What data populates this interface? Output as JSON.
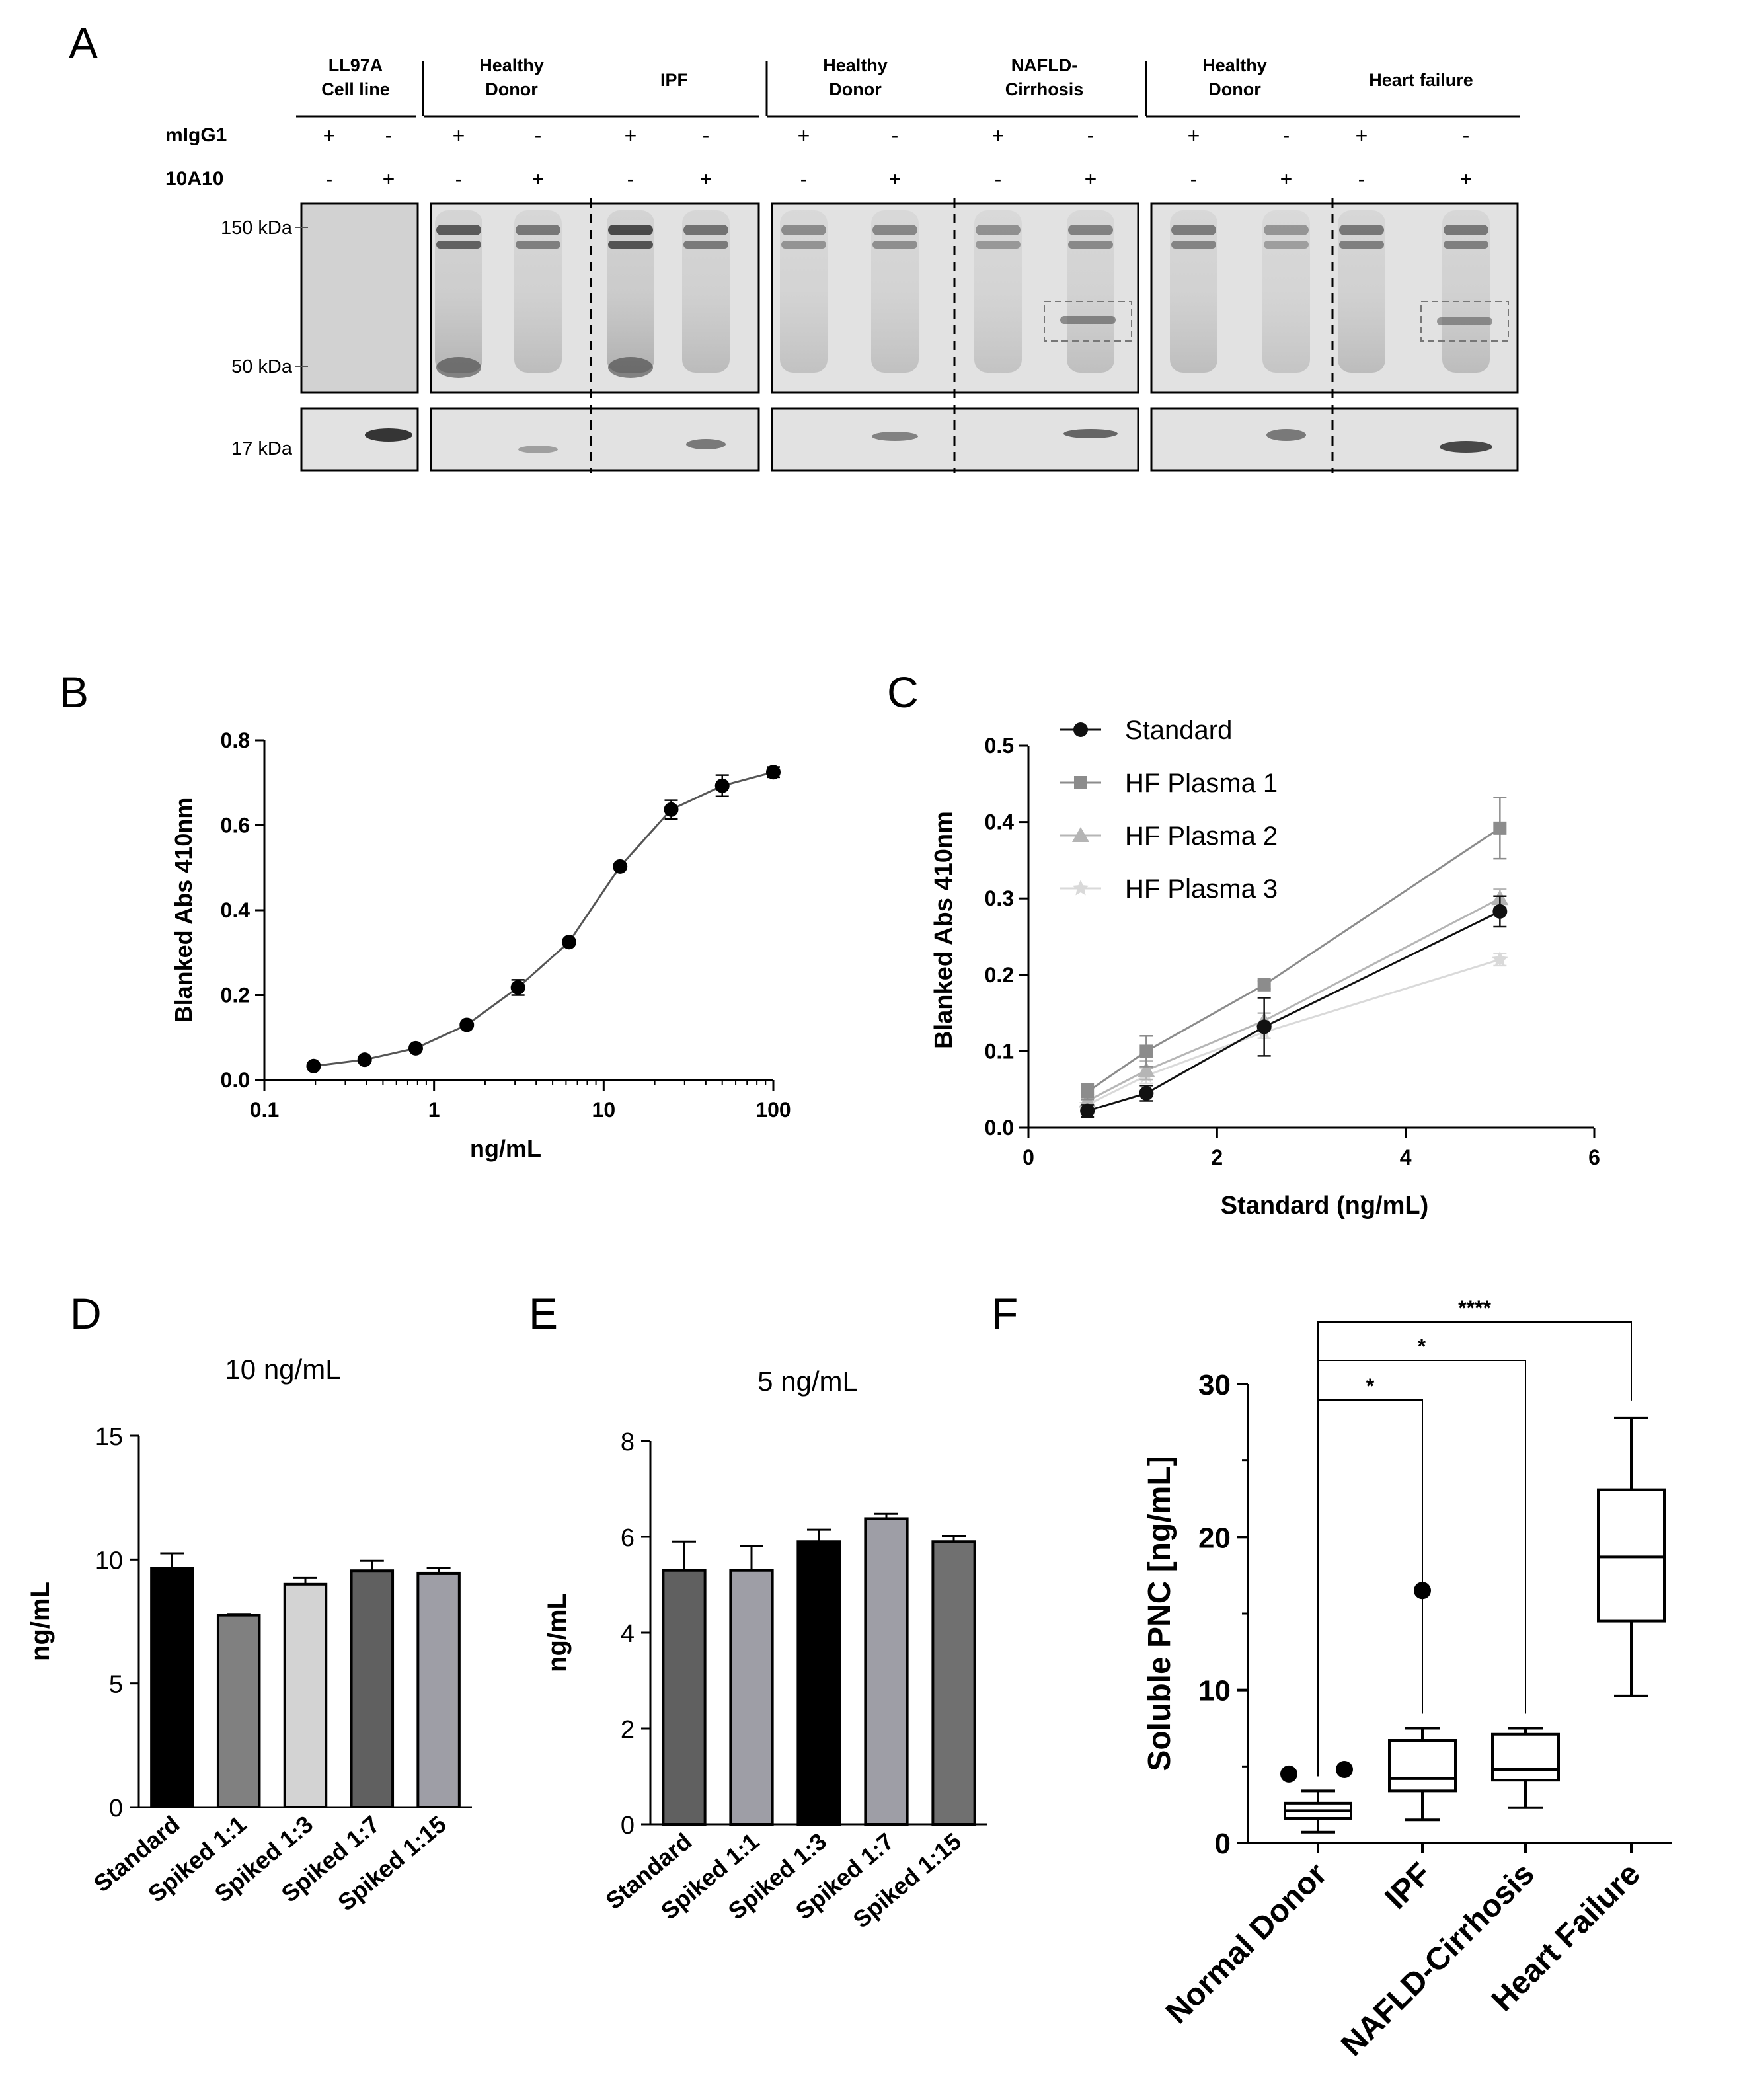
{
  "panel_letters": [
    "A",
    "B",
    "C",
    "D",
    "E",
    "F"
  ],
  "panelA": {
    "groups": [
      {
        "header": [
          "LL97A",
          "Cell line"
        ],
        "lanes": [
          {
            "migg1": "+",
            "a10": "-"
          },
          {
            "migg1": "-",
            "a10": "+"
          }
        ]
      },
      {
        "header": [
          "Healthy",
          "Donor"
        ],
        "lanes": [
          {
            "migg1": "+",
            "a10": "-"
          },
          {
            "migg1": "-",
            "a10": "+"
          }
        ]
      },
      {
        "header": [
          "IPF"
        ],
        "lanes": [
          {
            "migg1": "+",
            "a10": "-"
          },
          {
            "migg1": "-",
            "a10": "+"
          }
        ]
      },
      {
        "header": [
          "Healthy",
          "Donor"
        ],
        "lanes": [
          {
            "migg1": "+",
            "a10": "-"
          },
          {
            "migg1": "-",
            "a10": "+"
          }
        ]
      },
      {
        "header": [
          "NAFLD-",
          "Cirrhosis"
        ],
        "lanes": [
          {
            "migg1": "+",
            "a10": "-"
          },
          {
            "migg1": "-",
            "a10": "+"
          }
        ]
      },
      {
        "header": [
          "Healthy",
          "Donor"
        ],
        "lanes": [
          {
            "migg1": "+",
            "a10": "-"
          },
          {
            "migg1": "-",
            "a10": "+"
          }
        ]
      },
      {
        "header": [
          "Heart failure"
        ],
        "lanes": [
          {
            "migg1": "+",
            "a10": "-"
          },
          {
            "migg1": "-",
            "a10": "+"
          }
        ]
      }
    ],
    "row_labels": [
      "mIgG1",
      "10A10"
    ],
    "markers": [
      "150 kDa",
      "50 kDa",
      "17 kDa"
    ]
  },
  "chart_data": [
    {
      "panel": "B",
      "type": "line",
      "xlabel": "ng/mL",
      "ylabel": "Blanked Abs 410nm",
      "xscale": "log",
      "xlim": [
        0.1,
        100
      ],
      "ylim": [
        0,
        0.8
      ],
      "xticks": [
        0.1,
        1,
        10,
        100
      ],
      "xtick_labels": [
        "0.1",
        "1",
        "10",
        "100"
      ],
      "yticks": [
        0,
        0.2,
        0.4,
        0.6,
        0.8
      ],
      "ytick_labels": [
        "0.0",
        "0.2",
        "0.4",
        "0.6",
        "0.8"
      ],
      "x": [
        0.195,
        0.39,
        0.78,
        1.56,
        3.125,
        6.25,
        12.5,
        25,
        50,
        100
      ],
      "y": [
        0.033,
        0.048,
        0.075,
        0.13,
        0.218,
        0.325,
        0.503,
        0.637,
        0.693,
        0.725
      ],
      "err": [
        0.004,
        0.004,
        0.005,
        0.006,
        0.018,
        0.008,
        0.008,
        0.022,
        0.025,
        0.012
      ]
    },
    {
      "panel": "C",
      "type": "line",
      "xlabel": "Standard (ng/mL)",
      "ylabel": "Blanked Abs 410nm",
      "xlim": [
        0,
        6
      ],
      "ylim": [
        0,
        0.5
      ],
      "xticks": [
        0,
        2,
        4,
        6
      ],
      "xtick_labels": [
        "0",
        "2",
        "4",
        "6"
      ],
      "yticks": [
        0,
        0.1,
        0.2,
        0.3,
        0.4,
        0.5
      ],
      "ytick_labels": [
        "0.0",
        "0.1",
        "0.2",
        "0.3",
        "0.4",
        "0.5"
      ],
      "legend_position": "top-left",
      "x": [
        0.625,
        1.25,
        2.5,
        5
      ],
      "series": [
        {
          "name": "Standard",
          "values": [
            0.022,
            0.045,
            0.132,
            0.283
          ],
          "err": [
            0.008,
            0.01,
            0.038,
            0.02
          ],
          "color": "#111111",
          "marker": "circle"
        },
        {
          "name": "HF Plasma 1",
          "values": [
            0.047,
            0.1,
            0.187,
            0.392
          ],
          "err": [
            0.01,
            0.02,
            0.005,
            0.04
          ],
          "color": "#8c8c8c",
          "marker": "square"
        },
        {
          "name": "HF Plasma 2",
          "values": [
            0.035,
            0.075,
            0.14,
            0.3
          ],
          "err": [
            0.008,
            0.012,
            0.01,
            0.012
          ],
          "color": "#b5b5b5",
          "marker": "triangle"
        },
        {
          "name": "HF Plasma 3",
          "values": [
            0.03,
            0.068,
            0.125,
            0.22
          ],
          "err": [
            0.006,
            0.01,
            0.008,
            0.008
          ],
          "color": "#d9d9d9",
          "marker": "star"
        }
      ]
    },
    {
      "panel": "D",
      "type": "bar",
      "title": "10 ng/mL",
      "xlabel": "",
      "ylabel": "ng/mL",
      "ylim": [
        0,
        15
      ],
      "yticks": [
        0,
        5,
        10,
        15
      ],
      "ytick_labels": [
        "0",
        "5",
        "10",
        "15"
      ],
      "categories": [
        "Standard",
        "Spiked 1:1",
        "Spiked 1:3",
        "Spiked 1:7",
        "Spiked 1:15"
      ],
      "values": [
        9.65,
        7.75,
        9.0,
        9.55,
        9.45
      ],
      "err": [
        0.6,
        0.05,
        0.25,
        0.4,
        0.2
      ],
      "colors": [
        "#000000",
        "#808080",
        "#d3d3d3",
        "#606060",
        "#9e9ea6"
      ]
    },
    {
      "panel": "E",
      "type": "bar",
      "title": "5 ng/mL",
      "xlabel": "",
      "ylabel": "ng/mL",
      "ylim": [
        0,
        8
      ],
      "yticks": [
        0,
        2,
        4,
        6,
        8
      ],
      "ytick_labels": [
        "0",
        "2",
        "4",
        "6",
        "8"
      ],
      "categories": [
        "Standard",
        "Spiked 1:1",
        "Spiked 1:3",
        "Spiked 1:7",
        "Spiked 1:15"
      ],
      "values": [
        5.3,
        5.3,
        5.9,
        6.38,
        5.9
      ],
      "err": [
        0.6,
        0.5,
        0.25,
        0.1,
        0.12
      ],
      "colors": [
        "#606060",
        "#9e9ea6",
        "#000000",
        "#9e9ea6",
        "#707070"
      ]
    },
    {
      "panel": "F",
      "type": "box",
      "xlabel": "",
      "ylabel": "Soluble PNC [ng/mL]",
      "ylim": [
        0,
        30
      ],
      "yticks": [
        0,
        10,
        20,
        30
      ],
      "ytick_labels": [
        "0",
        "10",
        "20",
        "30"
      ],
      "categories": [
        "Normal Donor",
        "IPF",
        "NAFLD-Cirrhosis",
        "Heart Failure"
      ],
      "boxes": [
        {
          "min": 0.7,
          "q1": 1.6,
          "median": 2.1,
          "q3": 2.6,
          "max": 3.4,
          "outliers": [
            4.5,
            4.8
          ]
        },
        {
          "min": 1.5,
          "q1": 3.4,
          "median": 4.2,
          "q3": 6.7,
          "max": 7.5,
          "outliers": [
            16.5
          ]
        },
        {
          "min": 2.3,
          "q1": 4.1,
          "median": 4.8,
          "q3": 7.1,
          "max": 7.5,
          "outliers": []
        },
        {
          "min": 9.6,
          "q1": 14.5,
          "median": 18.7,
          "q3": 23.1,
          "max": 27.8,
          "outliers": []
        }
      ],
      "significance": [
        {
          "from": "Normal Donor",
          "to": "IPF",
          "label": "*"
        },
        {
          "from": "Normal Donor",
          "to": "NAFLD-Cirrhosis",
          "label": "*"
        },
        {
          "from": "Normal Donor",
          "to": "Heart Failure",
          "label": "****"
        }
      ]
    }
  ]
}
